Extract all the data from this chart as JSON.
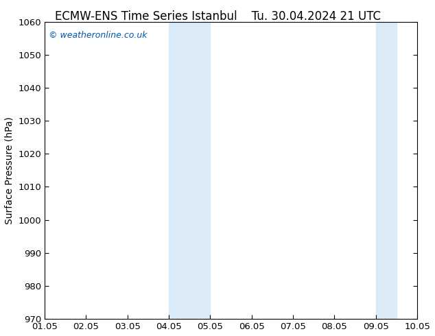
{
  "title_left": "ECMW-ENS Time Series Istanbul",
  "title_right": "Tu. 30.04.2024 21 UTC",
  "ylabel": "Surface Pressure (hPa)",
  "ylim": [
    970,
    1060
  ],
  "yticks": [
    970,
    980,
    990,
    1000,
    1010,
    1020,
    1030,
    1040,
    1050,
    1060
  ],
  "xlim": [
    0,
    9
  ],
  "xtick_labels": [
    "01.05",
    "02.05",
    "03.05",
    "04.05",
    "05.05",
    "06.05",
    "07.05",
    "08.05",
    "09.05",
    "10.05"
  ],
  "xtick_positions": [
    0,
    1,
    2,
    3,
    4,
    5,
    6,
    7,
    8,
    9
  ],
  "shaded_bands": [
    {
      "x_start": 3.0,
      "x_end": 4.0
    },
    {
      "x_start": 8.0,
      "x_end": 8.5
    }
  ],
  "band_color": "#daeaf7",
  "watermark": "© weatheronline.co.uk",
  "watermark_color": "#0055aa",
  "bg_color": "#ffffff",
  "plot_bg_color": "#ffffff",
  "title_fontsize": 12,
  "label_fontsize": 10,
  "tick_fontsize": 9.5
}
